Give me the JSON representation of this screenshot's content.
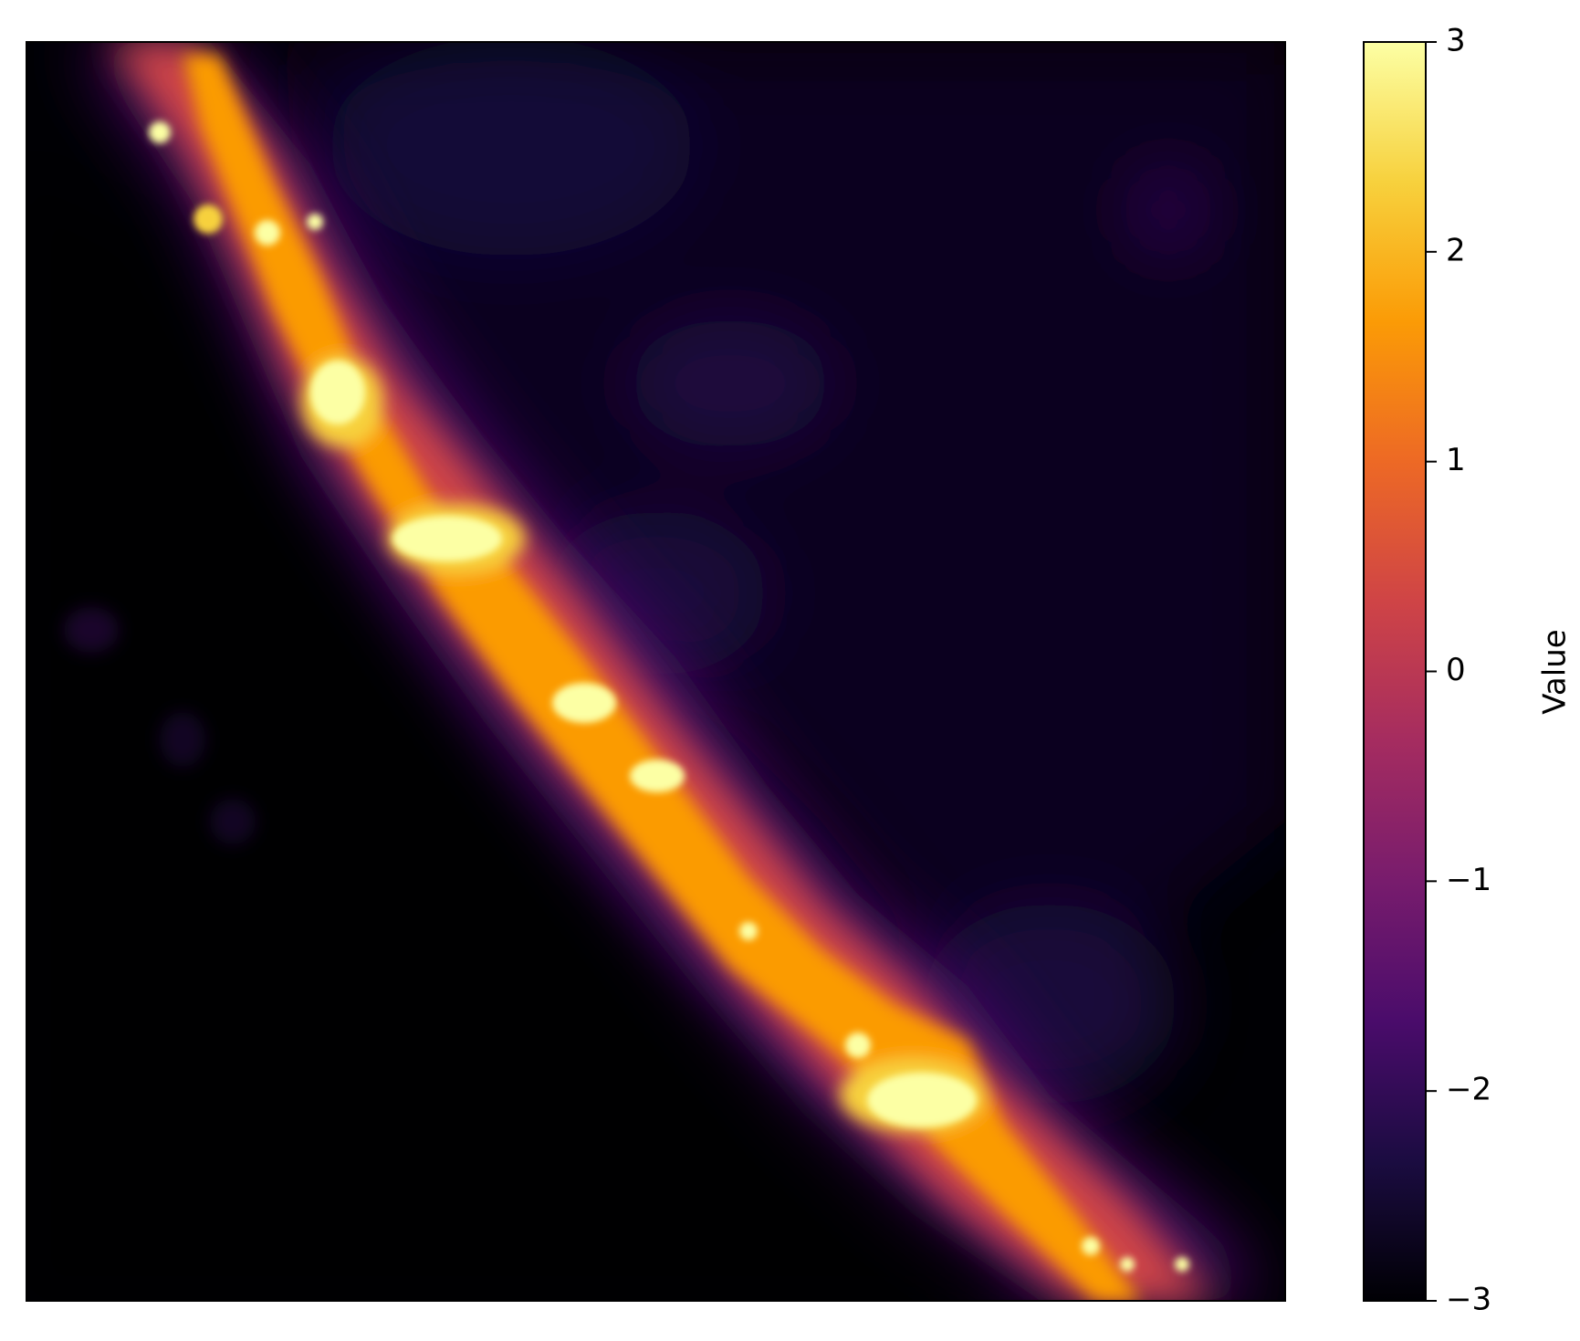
{
  "chart_data": {
    "type": "heatmap",
    "title": "",
    "xlabel": "",
    "ylabel": "",
    "axes_ticks_visible": false,
    "colormap": "inferno",
    "colorbar": {
      "label": "Value",
      "vmin": -3,
      "vmax": 3,
      "ticks": [
        3,
        2,
        1,
        0,
        -1,
        -2,
        -3
      ],
      "tick_labels": [
        "3",
        "2",
        "1",
        "0",
        "−1",
        "−2",
        "−3"
      ]
    },
    "description_values": {
      "background_value": -3,
      "ridge_peak_value": 3
    }
  },
  "colors": {
    "inferno_stops": [
      "#000004",
      "#1b0c41",
      "#4a0c6b",
      "#781c6d",
      "#a52c60",
      "#cf4446",
      "#ed6925",
      "#fb9b06",
      "#f7d13d",
      "#fcffa4"
    ]
  }
}
